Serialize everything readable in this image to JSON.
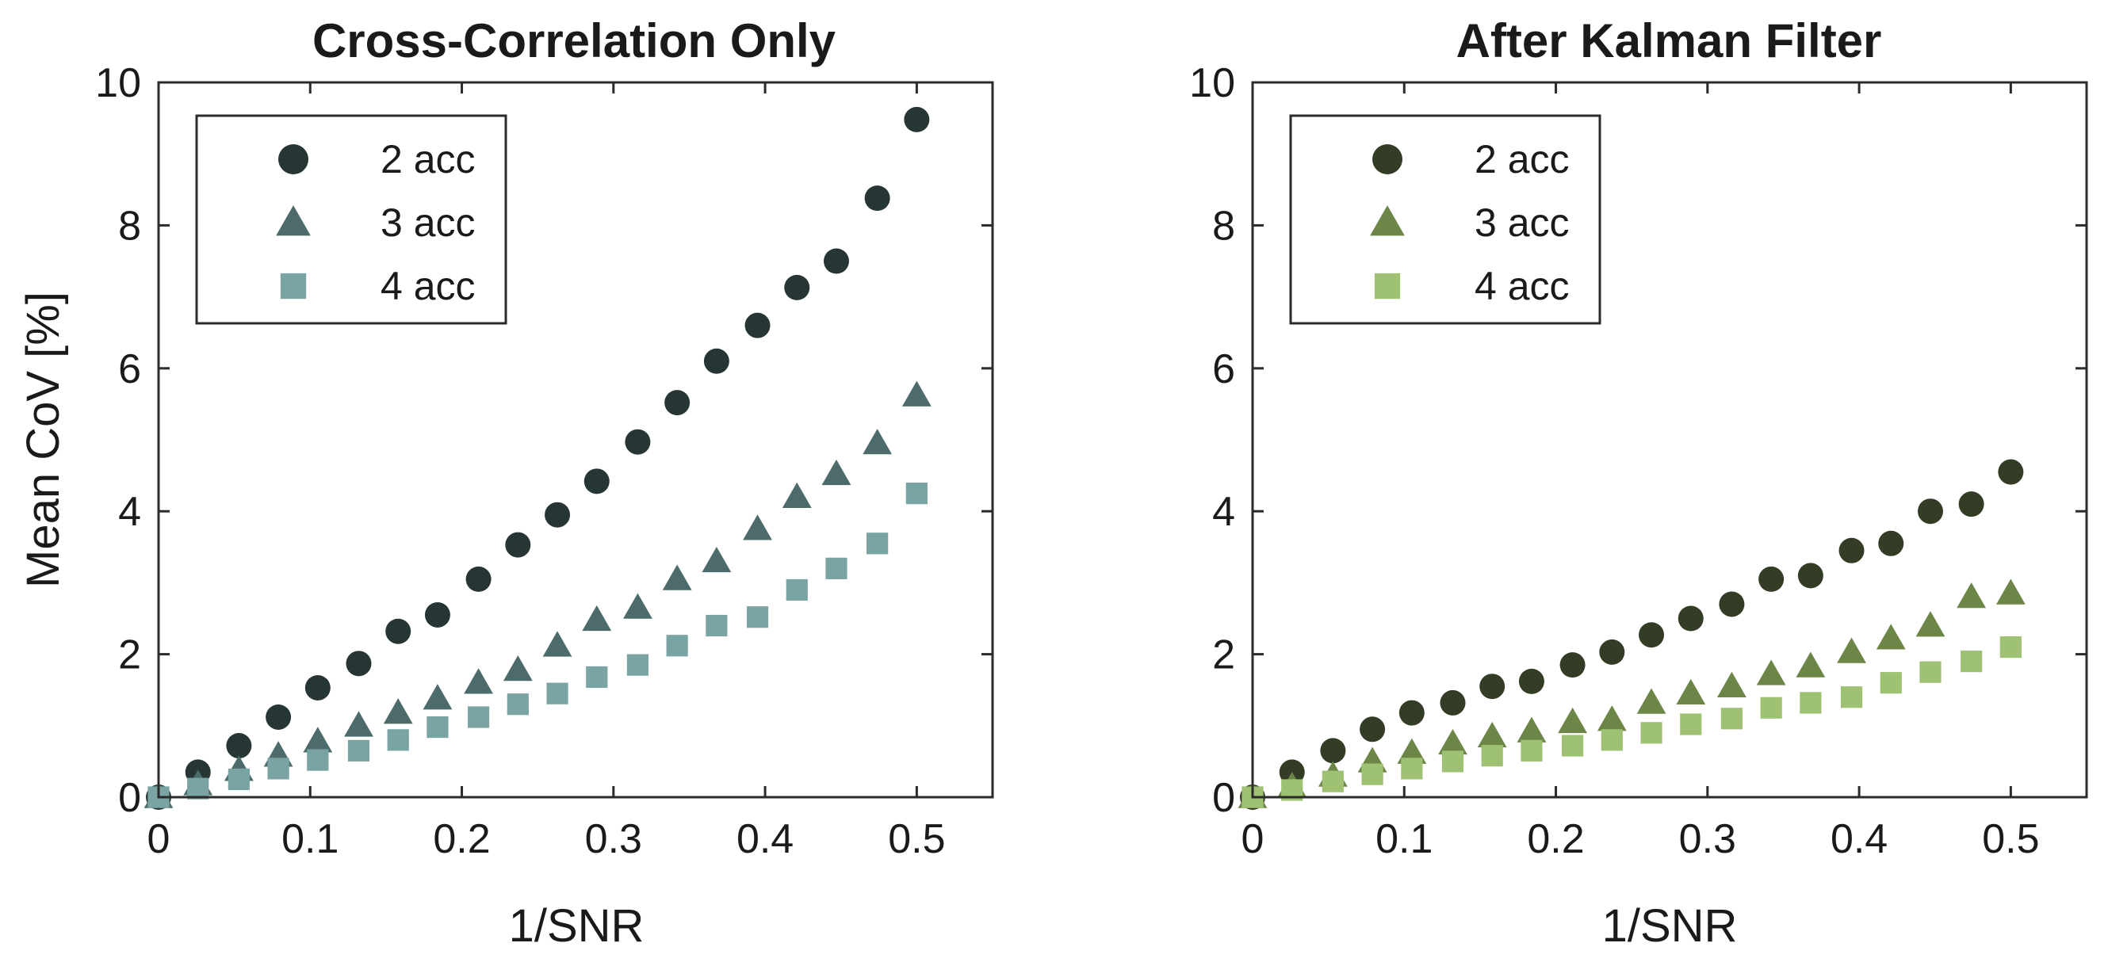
{
  "chart_data": [
    {
      "type": "scatter",
      "title": "Cross-Correlation Only",
      "xlabel": "1/SNR",
      "ylabel": "Mean CoV [%]",
      "xlim": [
        0,
        0.55
      ],
      "ylim": [
        0,
        10
      ],
      "xticks": [
        "0",
        "0.1",
        "0.2",
        "0.3",
        "0.4",
        "0.5"
      ],
      "yticks": [
        "0",
        "2",
        "4",
        "6",
        "8",
        "10"
      ],
      "x": [
        0,
        0.026,
        0.053,
        0.079,
        0.105,
        0.132,
        0.158,
        0.184,
        0.211,
        0.237,
        0.263,
        0.289,
        0.316,
        0.342,
        0.368,
        0.395,
        0.421,
        0.447,
        0.474,
        0.5
      ],
      "legend": "top-left",
      "series": [
        {
          "name": "2 acc",
          "marker": "circle",
          "color": "#263635",
          "values": [
            0,
            0.35,
            0.72,
            1.12,
            1.53,
            1.87,
            2.32,
            2.55,
            3.05,
            3.53,
            3.95,
            4.42,
            4.97,
            5.52,
            6.1,
            6.6,
            7.13,
            7.5,
            8.38,
            9.48
          ]
        },
        {
          "name": "3 acc",
          "marker": "triangle",
          "color": "#4d6b6b",
          "values": [
            0,
            0.18,
            0.38,
            0.58,
            0.78,
            1.0,
            1.18,
            1.38,
            1.6,
            1.78,
            2.12,
            2.48,
            2.65,
            3.05,
            3.3,
            3.75,
            4.2,
            4.52,
            4.95,
            5.62
          ]
        },
        {
          "name": "4 acc",
          "marker": "square",
          "color": "#7aa3a3",
          "values": [
            0,
            0.12,
            0.25,
            0.4,
            0.52,
            0.65,
            0.8,
            0.98,
            1.12,
            1.3,
            1.45,
            1.68,
            1.85,
            2.12,
            2.4,
            2.52,
            2.9,
            3.2,
            3.55,
            4.25
          ]
        }
      ]
    },
    {
      "type": "scatter",
      "title": "After Kalman Filter",
      "xlabel": "1/SNR",
      "ylabel": "",
      "xlim": [
        0,
        0.55
      ],
      "ylim": [
        0,
        10
      ],
      "xticks": [
        "0",
        "0.1",
        "0.2",
        "0.3",
        "0.4",
        "0.5"
      ],
      "yticks": [
        "0",
        "2",
        "4",
        "6",
        "8",
        "10"
      ],
      "x": [
        0,
        0.026,
        0.053,
        0.079,
        0.105,
        0.132,
        0.158,
        0.184,
        0.211,
        0.237,
        0.263,
        0.289,
        0.316,
        0.342,
        0.368,
        0.395,
        0.421,
        0.447,
        0.474,
        0.5
      ],
      "legend": "top-left",
      "series": [
        {
          "name": "2 acc",
          "marker": "circle",
          "color": "#333d26",
          "values": [
            0,
            0.35,
            0.65,
            0.95,
            1.18,
            1.32,
            1.55,
            1.62,
            1.85,
            2.03,
            2.27,
            2.5,
            2.7,
            3.05,
            3.1,
            3.45,
            3.55,
            4.0,
            4.1,
            4.55
          ]
        },
        {
          "name": "3 acc",
          "marker": "triangle",
          "color": "#6b8647",
          "values": [
            0,
            0.15,
            0.3,
            0.5,
            0.62,
            0.75,
            0.85,
            0.92,
            1.05,
            1.08,
            1.32,
            1.45,
            1.55,
            1.72,
            1.83,
            2.03,
            2.22,
            2.4,
            2.8,
            2.85
          ]
        },
        {
          "name": "4 acc",
          "marker": "square",
          "color": "#9fc173",
          "values": [
            0,
            0.1,
            0.22,
            0.32,
            0.4,
            0.5,
            0.58,
            0.65,
            0.72,
            0.8,
            0.9,
            1.02,
            1.1,
            1.25,
            1.32,
            1.4,
            1.6,
            1.75,
            1.9,
            2.1
          ]
        }
      ]
    }
  ]
}
